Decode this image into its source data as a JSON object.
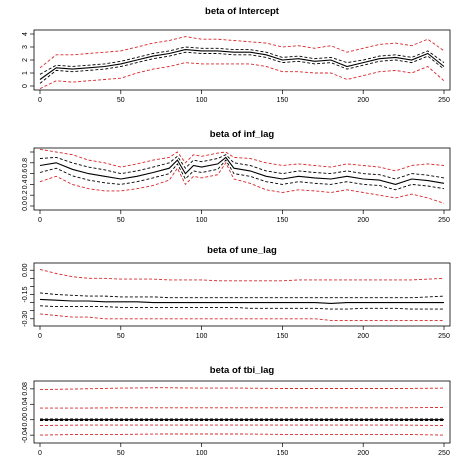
{
  "chart_data": [
    {
      "type": "line",
      "title": "beta of Intercept",
      "xlim": [
        0,
        250
      ],
      "ylim": [
        0,
        4
      ],
      "xticks": [
        0,
        50,
        100,
        150,
        200,
        250
      ],
      "yticks": [
        0,
        1,
        2,
        3,
        4
      ],
      "ytick_labels": [
        "0",
        "1",
        "2",
        "3",
        "4"
      ],
      "x": [
        0,
        10,
        20,
        30,
        40,
        50,
        60,
        70,
        80,
        90,
        100,
        110,
        120,
        130,
        140,
        150,
        160,
        170,
        180,
        190,
        200,
        210,
        220,
        230,
        240,
        250
      ],
      "series": [
        {
          "role": "estimate",
          "values": [
            0.5,
            1.4,
            1.3,
            1.4,
            1.5,
            1.7,
            2.0,
            2.3,
            2.5,
            2.8,
            2.7,
            2.7,
            2.6,
            2.6,
            2.4,
            2.0,
            2.1,
            1.9,
            2.0,
            1.5,
            1.8,
            2.1,
            2.2,
            2.0,
            2.5,
            1.5
          ]
        },
        {
          "role": "inner-upper",
          "values": [
            0.9,
            1.6,
            1.5,
            1.6,
            1.7,
            1.9,
            2.2,
            2.5,
            2.7,
            3.0,
            2.9,
            2.9,
            2.8,
            2.8,
            2.6,
            2.2,
            2.3,
            2.1,
            2.2,
            1.8,
            2.0,
            2.3,
            2.4,
            2.2,
            2.7,
            1.8
          ]
        },
        {
          "role": "inner-lower",
          "values": [
            0.2,
            1.2,
            1.1,
            1.2,
            1.3,
            1.5,
            1.8,
            2.1,
            2.3,
            2.6,
            2.5,
            2.5,
            2.4,
            2.4,
            2.2,
            1.8,
            1.9,
            1.7,
            1.8,
            1.3,
            1.6,
            1.9,
            2.0,
            1.8,
            2.3,
            1.3
          ]
        },
        {
          "role": "upper-band",
          "values": [
            1.4,
            2.4,
            2.4,
            2.5,
            2.6,
            2.7,
            3.0,
            3.3,
            3.5,
            3.8,
            3.6,
            3.6,
            3.5,
            3.4,
            3.3,
            3.0,
            3.1,
            2.9,
            3.1,
            2.6,
            2.9,
            3.2,
            3.3,
            3.1,
            3.6,
            2.7
          ]
        },
        {
          "role": "lower-band",
          "values": [
            -0.2,
            0.4,
            0.3,
            0.4,
            0.5,
            0.6,
            1.0,
            1.3,
            1.5,
            1.8,
            1.7,
            1.7,
            1.7,
            1.7,
            1.5,
            1.1,
            1.1,
            1.0,
            1.0,
            0.5,
            0.8,
            1.1,
            1.2,
            1.0,
            1.5,
            0.4
          ]
        }
      ]
    },
    {
      "type": "line",
      "title": "beta of inf_lag",
      "xlim": [
        0,
        250
      ],
      "ylim": [
        0,
        1
      ],
      "xticks": [
        0,
        50,
        100,
        150,
        200,
        250
      ],
      "yticks": [
        0,
        0.2,
        0.4,
        0.6,
        0.8,
        1.0
      ],
      "ytick_labels": [
        "0.0",
        "0.2",
        "0.4",
        "0.6",
        "0.8",
        ""
      ],
      "x": [
        0,
        10,
        20,
        30,
        40,
        50,
        60,
        70,
        80,
        85,
        90,
        95,
        100,
        110,
        115,
        120,
        130,
        140,
        150,
        160,
        170,
        180,
        190,
        200,
        210,
        220,
        230,
        240,
        250
      ],
      "series": [
        {
          "role": "estimate",
          "values": [
            0.75,
            0.8,
            0.68,
            0.6,
            0.55,
            0.5,
            0.55,
            0.62,
            0.7,
            0.85,
            0.6,
            0.75,
            0.72,
            0.78,
            0.9,
            0.7,
            0.65,
            0.55,
            0.5,
            0.55,
            0.52,
            0.5,
            0.55,
            0.5,
            0.48,
            0.4,
            0.5,
            0.47,
            0.42
          ]
        },
        {
          "role": "inner-upper",
          "values": [
            0.88,
            0.9,
            0.8,
            0.72,
            0.67,
            0.6,
            0.65,
            0.72,
            0.8,
            0.92,
            0.7,
            0.85,
            0.82,
            0.88,
            0.95,
            0.8,
            0.75,
            0.65,
            0.6,
            0.65,
            0.62,
            0.6,
            0.65,
            0.6,
            0.58,
            0.5,
            0.6,
            0.57,
            0.52
          ]
        },
        {
          "role": "inner-lower",
          "values": [
            0.62,
            0.7,
            0.56,
            0.48,
            0.43,
            0.4,
            0.45,
            0.52,
            0.6,
            0.78,
            0.5,
            0.65,
            0.62,
            0.68,
            0.85,
            0.6,
            0.55,
            0.45,
            0.4,
            0.45,
            0.42,
            0.4,
            0.45,
            0.4,
            0.38,
            0.3,
            0.4,
            0.37,
            0.32
          ]
        },
        {
          "role": "upper-band",
          "values": [
            1.05,
            1.0,
            0.95,
            0.85,
            0.8,
            0.72,
            0.78,
            0.85,
            0.9,
            1.0,
            0.8,
            0.95,
            0.92,
            0.98,
            1.0,
            0.9,
            0.88,
            0.8,
            0.75,
            0.78,
            0.75,
            0.72,
            0.78,
            0.75,
            0.72,
            0.65,
            0.75,
            0.78,
            0.75
          ]
        },
        {
          "role": "lower-band",
          "values": [
            0.45,
            0.55,
            0.4,
            0.32,
            0.28,
            0.28,
            0.32,
            0.38,
            0.48,
            0.7,
            0.4,
            0.55,
            0.52,
            0.58,
            0.8,
            0.5,
            0.42,
            0.3,
            0.25,
            0.3,
            0.28,
            0.25,
            0.3,
            0.25,
            0.2,
            0.15,
            0.22,
            0.15,
            0.05
          ]
        }
      ]
    },
    {
      "type": "line",
      "title": "beta of une_lag",
      "xlim": [
        0,
        250
      ],
      "ylim": [
        -0.32,
        0.02
      ],
      "xticks": [
        0,
        50,
        100,
        150,
        200,
        250
      ],
      "yticks": [
        0.0,
        -0.05,
        -0.1,
        -0.15,
        -0.2,
        -0.25,
        -0.3
      ],
      "ytick_labels": [
        "0.00",
        "",
        "",
        "-0.15",
        "",
        "",
        "-0.30"
      ],
      "x": [
        0,
        10,
        20,
        30,
        40,
        50,
        60,
        70,
        80,
        90,
        100,
        110,
        120,
        130,
        140,
        150,
        160,
        170,
        180,
        190,
        200,
        210,
        220,
        230,
        240,
        250
      ],
      "series": [
        {
          "role": "estimate",
          "values": [
            -0.18,
            -0.185,
            -0.19,
            -0.19,
            -0.195,
            -0.195,
            -0.195,
            -0.2,
            -0.2,
            -0.2,
            -0.2,
            -0.2,
            -0.2,
            -0.2,
            -0.2,
            -0.2,
            -0.2,
            -0.2,
            -0.205,
            -0.2,
            -0.2,
            -0.2,
            -0.2,
            -0.2,
            -0.2,
            -0.2
          ]
        },
        {
          "role": "inner-upper",
          "values": [
            -0.14,
            -0.15,
            -0.155,
            -0.16,
            -0.16,
            -0.165,
            -0.165,
            -0.165,
            -0.17,
            -0.17,
            -0.17,
            -0.17,
            -0.17,
            -0.17,
            -0.17,
            -0.17,
            -0.17,
            -0.17,
            -0.17,
            -0.17,
            -0.17,
            -0.17,
            -0.17,
            -0.17,
            -0.165,
            -0.16
          ]
        },
        {
          "role": "inner-lower",
          "values": [
            -0.22,
            -0.225,
            -0.225,
            -0.225,
            -0.225,
            -0.23,
            -0.23,
            -0.23,
            -0.23,
            -0.23,
            -0.23,
            -0.23,
            -0.23,
            -0.235,
            -0.235,
            -0.235,
            -0.235,
            -0.235,
            -0.24,
            -0.24,
            -0.235,
            -0.235,
            -0.235,
            -0.24,
            -0.24,
            -0.24
          ]
        },
        {
          "role": "upper-band",
          "values": [
            0.005,
            -0.02,
            -0.04,
            -0.05,
            -0.05,
            -0.055,
            -0.055,
            -0.055,
            -0.06,
            -0.06,
            -0.06,
            -0.065,
            -0.065,
            -0.065,
            -0.065,
            -0.065,
            -0.06,
            -0.06,
            -0.06,
            -0.06,
            -0.06,
            -0.06,
            -0.06,
            -0.06,
            -0.055,
            -0.05
          ]
        },
        {
          "role": "lower-band",
          "values": [
            -0.27,
            -0.28,
            -0.29,
            -0.29,
            -0.3,
            -0.3,
            -0.3,
            -0.3,
            -0.3,
            -0.3,
            -0.3,
            -0.3,
            -0.3,
            -0.3,
            -0.3,
            -0.3,
            -0.3,
            -0.3,
            -0.31,
            -0.31,
            -0.31,
            -0.31,
            -0.31,
            -0.31,
            -0.31,
            -0.31
          ]
        }
      ]
    },
    {
      "type": "line",
      "title": "beta of tbi_lag",
      "xlim": [
        0,
        250
      ],
      "ylim": [
        -0.05,
        0.09
      ],
      "xticks": [
        0,
        50,
        100,
        150,
        200,
        250
      ],
      "yticks": [
        -0.04,
        0.0,
        0.04,
        0.08
      ],
      "ytick_labels": [
        "-0.04",
        "0.00",
        "0.04",
        "0.08"
      ],
      "x": [
        0,
        25,
        50,
        75,
        100,
        125,
        150,
        175,
        200,
        225,
        250
      ],
      "series": [
        {
          "role": "estimate",
          "values": [
            0.0,
            0.0,
            0.0,
            0.0,
            0.0,
            0.0,
            0.0,
            0.0,
            0.0,
            0.0,
            0.0
          ]
        },
        {
          "role": "inner-upper",
          "values": [
            0.002,
            0.002,
            0.002,
            0.002,
            0.002,
            0.002,
            0.002,
            0.002,
            0.002,
            0.002,
            0.002
          ]
        },
        {
          "role": "inner-lower",
          "values": [
            -0.002,
            -0.002,
            -0.002,
            -0.002,
            -0.002,
            -0.002,
            -0.002,
            -0.002,
            -0.002,
            -0.002,
            -0.002
          ]
        },
        {
          "role": "upper-band",
          "values": [
            0.078,
            0.08,
            0.082,
            0.083,
            0.082,
            0.082,
            0.081,
            0.081,
            0.081,
            0.081,
            0.082
          ]
        },
        {
          "role": "lower-band",
          "values": [
            -0.04,
            -0.038,
            -0.038,
            -0.037,
            -0.037,
            -0.037,
            -0.038,
            -0.038,
            -0.038,
            -0.038,
            -0.04
          ]
        },
        {
          "role": "mid-upper-band",
          "values": [
            0.03,
            0.03,
            0.031,
            0.031,
            0.031,
            0.031,
            0.031,
            0.031,
            0.031,
            0.031,
            0.032
          ]
        },
        {
          "role": "mid-lower-band",
          "values": [
            -0.015,
            -0.014,
            -0.014,
            -0.014,
            -0.014,
            -0.014,
            -0.014,
            -0.014,
            -0.014,
            -0.014,
            -0.015
          ]
        }
      ]
    }
  ],
  "colors": {
    "estimate": "#000000",
    "band": "#d9262a"
  }
}
